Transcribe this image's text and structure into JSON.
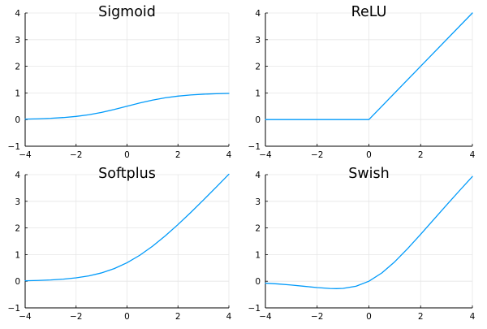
{
  "chart_data": [
    {
      "type": "line",
      "title": "Sigmoid",
      "xlabel": "",
      "ylabel": "",
      "xlim": [
        -4,
        4
      ],
      "ylim": [
        -1,
        4
      ],
      "xticks": [
        "−4",
        "−2",
        "0",
        "2",
        "4"
      ],
      "yticks": [
        "−1",
        "0",
        "1",
        "2",
        "3",
        "4"
      ],
      "grid": true,
      "legend": "none",
      "series": [
        {
          "color": "#009AFA",
          "x": [
            -4,
            -3.5,
            -3,
            -2.5,
            -2,
            -1.5,
            -1,
            -0.5,
            0,
            0.5,
            1,
            1.5,
            2,
            2.5,
            3,
            3.5,
            4
          ],
          "y": [
            0.018,
            0.029,
            0.047,
            0.076,
            0.119,
            0.182,
            0.269,
            0.378,
            0.5,
            0.622,
            0.731,
            0.818,
            0.881,
            0.924,
            0.953,
            0.971,
            0.982
          ]
        }
      ]
    },
    {
      "type": "line",
      "title": "ReLU",
      "xlabel": "",
      "ylabel": "",
      "xlim": [
        -4,
        4
      ],
      "ylim": [
        -1,
        4
      ],
      "xticks": [
        "−4",
        "−2",
        "0",
        "2",
        "4"
      ],
      "yticks": [
        "−1",
        "0",
        "1",
        "2",
        "3",
        "4"
      ],
      "grid": true,
      "legend": "none",
      "series": [
        {
          "color": "#009AFA",
          "x": [
            -4,
            -2,
            0,
            2,
            4
          ],
          "y": [
            0,
            0,
            0,
            2,
            4
          ]
        }
      ]
    },
    {
      "type": "line",
      "title": "Softplus",
      "xlabel": "",
      "ylabel": "",
      "xlim": [
        -4,
        4
      ],
      "ylim": [
        -1,
        4
      ],
      "xticks": [
        "−4",
        "−2",
        "0",
        "2",
        "4"
      ],
      "yticks": [
        "−1",
        "0",
        "1",
        "2",
        "3",
        "4"
      ],
      "grid": true,
      "legend": "none",
      "series": [
        {
          "color": "#009AFA",
          "x": [
            -4,
            -3.5,
            -3,
            -2.5,
            -2,
            -1.5,
            -1,
            -0.5,
            0,
            0.5,
            1,
            1.5,
            2,
            2.5,
            3,
            3.5,
            4
          ],
          "y": [
            0.018,
            0.03,
            0.049,
            0.079,
            0.127,
            0.201,
            0.313,
            0.474,
            0.693,
            0.974,
            1.313,
            1.701,
            2.127,
            2.579,
            3.049,
            3.53,
            4.018
          ]
        }
      ]
    },
    {
      "type": "line",
      "title": "Swish",
      "xlabel": "",
      "ylabel": "",
      "xlim": [
        -4,
        4
      ],
      "ylim": [
        -1,
        4
      ],
      "xticks": [
        "−4",
        "−2",
        "0",
        "2",
        "4"
      ],
      "yticks": [
        "−1",
        "0",
        "1",
        "2",
        "3",
        "4"
      ],
      "grid": true,
      "legend": "none",
      "series": [
        {
          "color": "#009AFA",
          "x": [
            -4,
            -3.5,
            -3,
            -2.5,
            -2,
            -1.5,
            -1.25,
            -1,
            -0.5,
            0,
            0.5,
            1,
            1.5,
            2,
            2.5,
            3,
            3.5,
            4
          ],
          "y": [
            -0.072,
            -0.102,
            -0.142,
            -0.19,
            -0.238,
            -0.273,
            -0.278,
            -0.269,
            -0.189,
            0,
            0.311,
            0.731,
            1.227,
            1.762,
            2.31,
            2.858,
            3.398,
            3.928
          ]
        }
      ]
    }
  ]
}
